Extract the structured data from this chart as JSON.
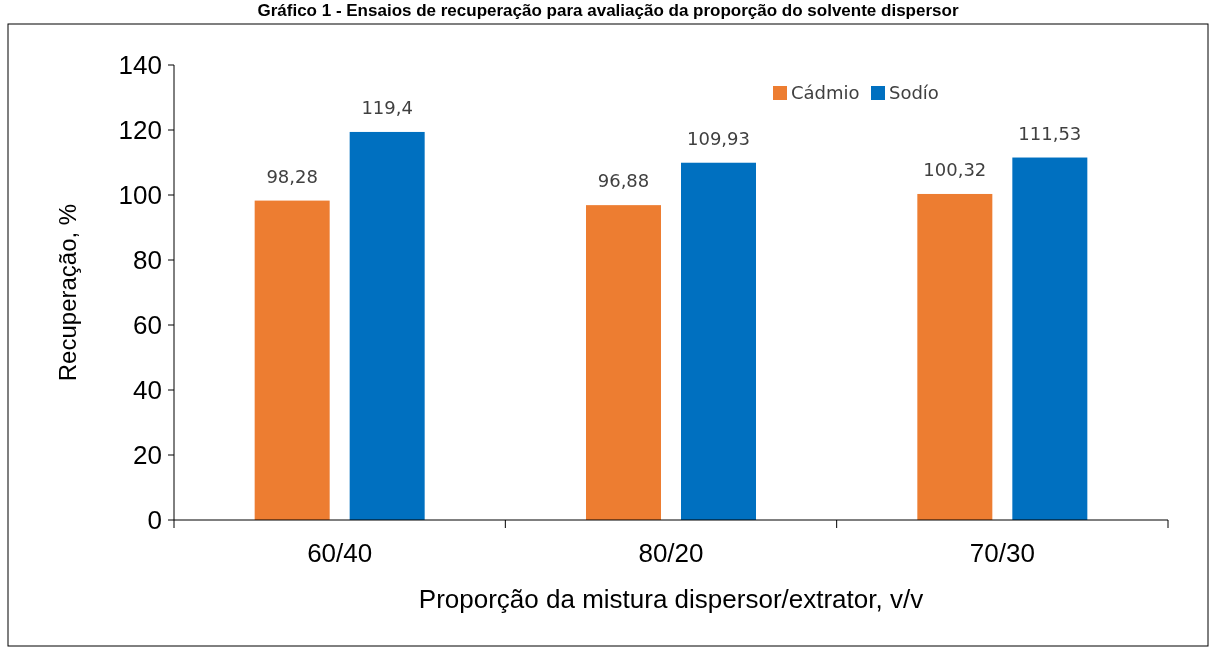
{
  "chart_data": {
    "type": "bar",
    "title": "Gráfico 1 - Ensaios de recuperação para avaliação da proporção do solvente dispersor",
    "xlabel": "Proporção da mistura dispersor/extrator, v/v",
    "ylabel": "Recuperação, %",
    "categories": [
      "60/40",
      "80/20",
      "70/30"
    ],
    "series": [
      {
        "name": "Cádmio",
        "color": "#ed7d31",
        "values": [
          98.28,
          96.88,
          100.32
        ],
        "value_labels": [
          "98,28",
          "96,88",
          "100,32"
        ]
      },
      {
        "name": "Sodío",
        "color": "#0070c0",
        "values": [
          119.4,
          109.93,
          111.53
        ],
        "value_labels": [
          "119,4",
          "109,93",
          "111,53"
        ]
      }
    ],
    "ylim": [
      0,
      140
    ],
    "yticks": [
      0,
      20,
      40,
      60,
      80,
      100,
      120,
      140
    ],
    "grid": false,
    "legend": "top right"
  }
}
